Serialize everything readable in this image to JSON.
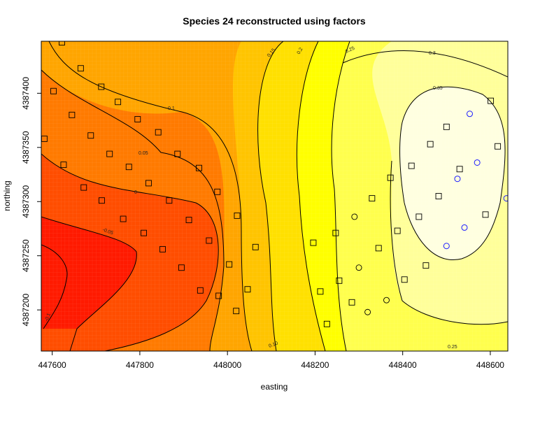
{
  "chart_data": {
    "type": "heatmap",
    "title": "Species 24 reconstructed using factors",
    "xlabel": "easting",
    "ylabel": "northing",
    "xlim": [
      447575,
      448640
    ],
    "ylim": [
      4387162,
      4387448
    ],
    "x_ticks": [
      "447600",
      "447800",
      "448000",
      "448200",
      "448400",
      "448600"
    ],
    "x_tick_values": [
      447600,
      447800,
      448000,
      448200,
      448400,
      448600
    ],
    "y_ticks": [
      "4387200",
      "4387250",
      "4387300",
      "4387350",
      "4387400"
    ],
    "y_tick_values": [
      4387200,
      4387250,
      4387300,
      4387350,
      4387400
    ],
    "color_levels": [
      {
        "level": "<-0.05",
        "color": "#ff1a00"
      },
      {
        "level": "-0.05-0",
        "color": "#ff4d00"
      },
      {
        "level": "0-0.05",
        "color": "#ff7a00"
      },
      {
        "level": "0.05-0.1",
        "color": "#ffa500"
      },
      {
        "level": "0.1-0.15",
        "color": "#ffc400"
      },
      {
        "level": "0.15-0.2",
        "color": "#ffe000"
      },
      {
        "level": "0.2-0.25",
        "color": "#ffff00"
      },
      {
        "level": "0.25-0.3",
        "color": "#ffff4d"
      },
      {
        "level": "0.3-0.35",
        "color": "#ffff9a"
      },
      {
        "level": ">0.35",
        "color": "#ffffe0"
      }
    ],
    "contour_labels": [
      "0.1",
      "0.05",
      "0",
      "-0.05",
      "-0.1",
      "0.15",
      "0.2",
      "0.25",
      "0.3",
      "0.35",
      "0.10",
      "0.25"
    ],
    "points_square": [
      [
        447622,
        4387447
      ],
      [
        447665,
        4387423
      ],
      [
        447603,
        4387402
      ],
      [
        447712,
        4387406
      ],
      [
        447750,
        4387392
      ],
      [
        447645,
        4387380
      ],
      [
        447795,
        4387376
      ],
      [
        447842,
        4387364
      ],
      [
        447582,
        4387358
      ],
      [
        447688,
        4387361
      ],
      [
        447731,
        4387344
      ],
      [
        447886,
        4387344
      ],
      [
        447626,
        4387334
      ],
      [
        447775,
        4387332
      ],
      [
        447935,
        4387331
      ],
      [
        447672,
        4387313
      ],
      [
        447820,
        4387317
      ],
      [
        447977,
        4387309
      ],
      [
        447713,
        4387301
      ],
      [
        447867,
        4387301
      ],
      [
        447762,
        4387284
      ],
      [
        447912,
        4387283
      ],
      [
        448022,
        4387287
      ],
      [
        447809,
        4387271
      ],
      [
        447958,
        4387264
      ],
      [
        448064,
        4387258
      ],
      [
        447852,
        4387256
      ],
      [
        447895,
        4387239
      ],
      [
        448004,
        4387242
      ],
      [
        447938,
        4387218
      ],
      [
        448046,
        4387219
      ],
      [
        447980,
        4387213
      ],
      [
        448020,
        4387199
      ],
      [
        448196,
        4387262
      ],
      [
        448212,
        4387217
      ],
      [
        448227,
        4387187
      ],
      [
        448247,
        4387271
      ],
      [
        448255,
        4387227
      ],
      [
        448284,
        4387207
      ],
      [
        448330,
        4387303
      ],
      [
        448345,
        4387257
      ],
      [
        448372,
        4387322
      ],
      [
        448388,
        4387273
      ],
      [
        448404,
        4387228
      ],
      [
        448420,
        4387333
      ],
      [
        448437,
        4387286
      ],
      [
        448453,
        4387241
      ],
      [
        448463,
        4387353
      ],
      [
        448482,
        4387305
      ],
      [
        448500,
        4387369
      ],
      [
        448530,
        4387330
      ],
      [
        448589,
        4387288
      ],
      [
        448601,
        4387393
      ],
      [
        448617,
        4387351
      ]
    ],
    "points_circle_black": [
      [
        448290,
        4387286
      ],
      [
        448300,
        4387239
      ],
      [
        448320,
        4387198
      ],
      [
        448363,
        4387209
      ]
    ],
    "points_circle_blue": [
      [
        448500,
        4387259
      ],
      [
        448541,
        4387276
      ],
      [
        448525,
        4387321
      ],
      [
        448570,
        4387336
      ],
      [
        448553,
        4387381
      ],
      [
        448637,
        4387303
      ]
    ],
    "grid": false
  }
}
